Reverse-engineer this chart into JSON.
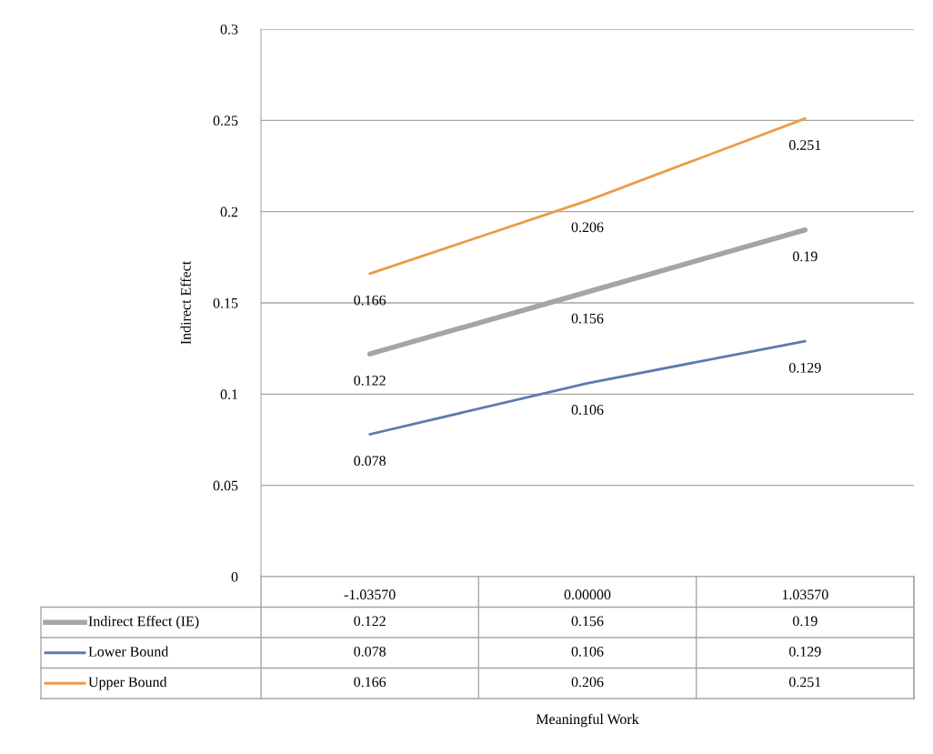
{
  "chart_data": {
    "type": "line",
    "ylabel": "Indirect Effect",
    "categories": [
      "-1.03570",
      "0.00000",
      "1.03570"
    ],
    "series": [
      {
        "name": "Indirect Effect (IE)",
        "color": "#a5a5a5",
        "values": [
          0.122,
          0.156,
          0.19
        ]
      },
      {
        "name": "Lower Bound",
        "color": "#5b7bb0",
        "values": [
          0.078,
          0.106,
          0.129
        ]
      },
      {
        "name": "Upper Bound",
        "color": "#ee9a49",
        "values": [
          0.166,
          0.206,
          0.251
        ]
      }
    ],
    "annotations": [
      "Meaningful Work",
      {
        "text": "0.122",
        "x": "-1.03570",
        "y": 0.122
      },
      {
        "text": "0.156",
        "x": "0.00000",
        "y": 0.156
      },
      {
        "text": "0.19",
        "x": "1.03570",
        "y": 0.19
      },
      {
        "text": "0.078",
        "x": "-1.03570",
        "y": 0.078
      },
      {
        "text": "0.106",
        "x": "0.00000",
        "y": 0.106
      },
      {
        "text": "0.129",
        "x": "1.03570",
        "y": 0.129
      },
      {
        "text": "0.166",
        "x": "-1.03570",
        "y": 0.166
      },
      {
        "text": "0.206",
        "x": "0.00000",
        "y": 0.206
      },
      {
        "text": "0.251",
        "x": "1.03570",
        "y": 0.251
      }
    ],
    "ylim": [
      0,
      0.3
    ],
    "yticks": [
      0,
      0.05,
      0.1,
      0.15,
      0.2,
      0.25,
      0.3
    ],
    "grid": "y",
    "legend": "bottom",
    "data_labels": true,
    "marker": "none",
    "line_style": "solid"
  }
}
